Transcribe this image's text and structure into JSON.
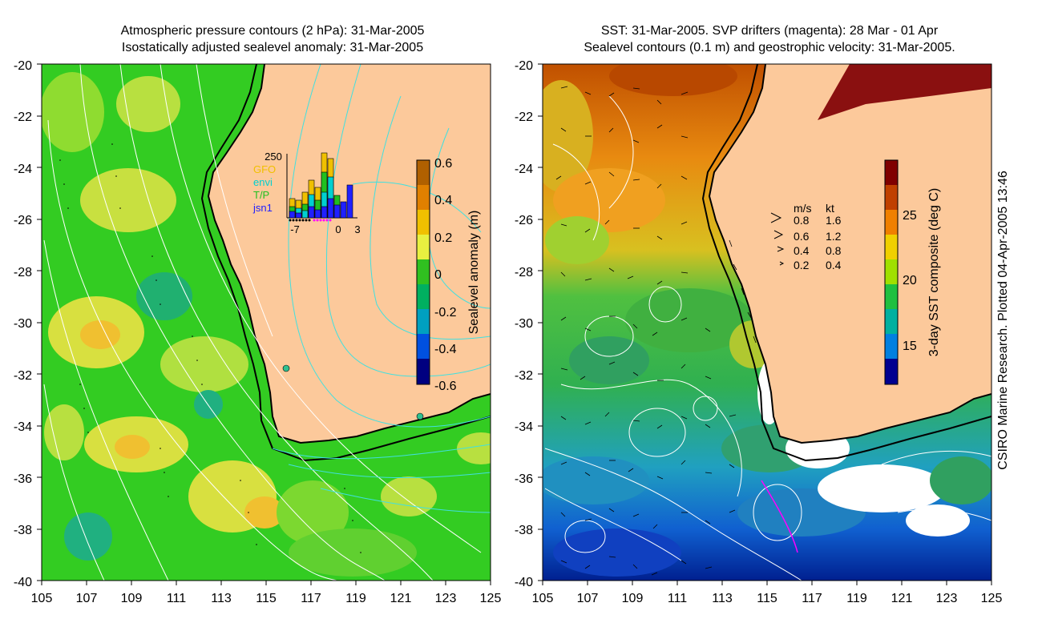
{
  "left_map": {
    "title_line1": "Atmospheric pressure contours (2 hPa): 31-Mar-2005",
    "title_line2": "Isostatically adjusted sealevel anomaly: 31-Mar-2005",
    "y_ticks": [
      "-20",
      "-22",
      "-24",
      "-26",
      "-28",
      "-30",
      "-32",
      "-34",
      "-36",
      "-38",
      "-40"
    ],
    "x_ticks": [
      "105",
      "107",
      "109",
      "111",
      "113",
      "115",
      "117",
      "119",
      "121",
      "123",
      "125"
    ],
    "colorbar": {
      "label": "Sealevel anomaly (m)",
      "ticks": [
        "0.6",
        "0.4",
        "0.2",
        "0",
        "-0.2",
        "-0.4",
        "-0.6"
      ],
      "colors": [
        "#b06000",
        "#e08000",
        "#f0c000",
        "#e8f040",
        "#30c020",
        "#00b060",
        "#00a0c0",
        "#0050e0",
        "#000080"
      ]
    },
    "inset": {
      "y_max": "250",
      "x_ticks": [
        "-7",
        "0",
        "3"
      ],
      "legend": [
        {
          "label": "GFO",
          "color": "#f0c000"
        },
        {
          "label": "envi",
          "color": "#00d0d0"
        },
        {
          "label": "T/P",
          "color": "#20c020"
        },
        {
          "label": "jsn1",
          "color": "#2020ff"
        }
      ]
    }
  },
  "right_map": {
    "title_line1": "SST: 31-Mar-2005. SVP drifters (magenta): 28 Mar - 01 Apr",
    "title_line2": "Sealevel contours (0.1 m) and geostrophic velocity: 31-Mar-2005.",
    "y_ticks": [
      "-20",
      "-22",
      "-24",
      "-26",
      "-28",
      "-30",
      "-32",
      "-34",
      "-36",
      "-38",
      "-40"
    ],
    "x_ticks": [
      "105",
      "107",
      "109",
      "111",
      "113",
      "115",
      "117",
      "119",
      "121",
      "123",
      "125"
    ],
    "colorbar": {
      "label": "3-day SST composite (deg C)",
      "ticks": [
        "25",
        "20",
        "15"
      ],
      "colors": [
        "#800000",
        "#c04000",
        "#f08000",
        "#f0d000",
        "#a0e000",
        "#20c040",
        "#00b0a0",
        "#0080e0",
        "#000090"
      ]
    },
    "velocity_legend": {
      "header_ms": "m/s",
      "header_kt": "kt",
      "rows": [
        {
          "ms": "0.8",
          "kt": "1.6"
        },
        {
          "ms": "0.6",
          "kt": "1.2"
        },
        {
          "ms": "0.4",
          "kt": "0.8"
        },
        {
          "ms": "0.2",
          "kt": "0.4"
        }
      ]
    }
  },
  "credit": "CSIRO Marine Research. Plotted 04-Apr-2005 13:46",
  "colors": {
    "land": "#fcc99b",
    "coast": "#000000",
    "sea_green": "#33cc33",
    "contour_cyan": "#40e0e0"
  }
}
